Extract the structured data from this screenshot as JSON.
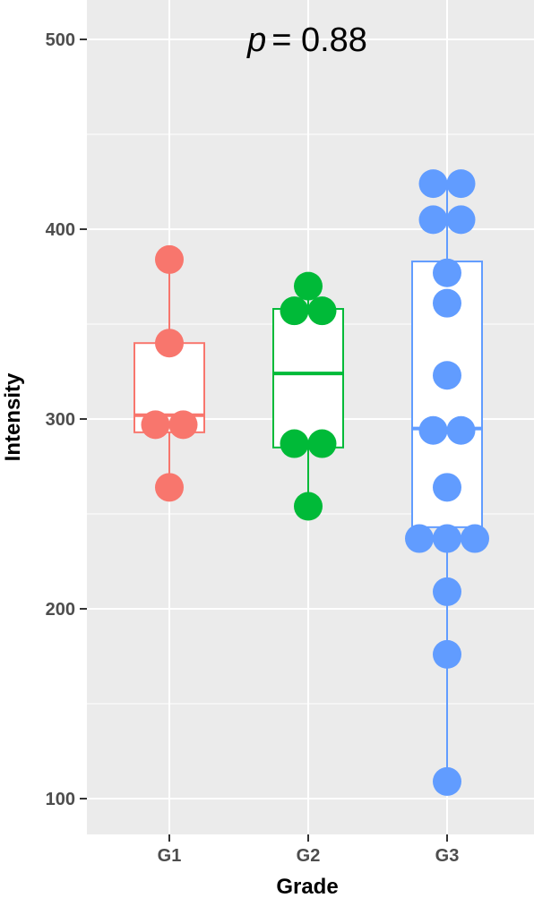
{
  "chart_data": {
    "type": "box-dot",
    "xlabel": "Grade",
    "ylabel": "Intensity",
    "ylim": [
      75,
      525
    ],
    "y_ticks": [
      100,
      200,
      300,
      400,
      500
    ],
    "grid": true,
    "annotation": {
      "p_symbol": "p",
      "text": "= 0.88"
    },
    "categories": [
      "G1",
      "G2",
      "G3"
    ],
    "groups": [
      {
        "name": "G1",
        "color": "#F8766D",
        "box": {
          "min": 264,
          "q1": 293,
          "median": 302,
          "q3": 340,
          "max": 384
        },
        "points": [
          {
            "offset": 0,
            "y": 384
          },
          {
            "offset": 0,
            "y": 340
          },
          {
            "offset": -0.5,
            "y": 297
          },
          {
            "offset": 0.5,
            "y": 297
          },
          {
            "offset": 0,
            "y": 264
          }
        ]
      },
      {
        "name": "G2",
        "color": "#00BA38",
        "box": {
          "min": 254,
          "q1": 285,
          "median": 324,
          "q3": 358,
          "max": 370
        },
        "points": [
          {
            "offset": 0,
            "y": 370
          },
          {
            "offset": -0.5,
            "y": 357
          },
          {
            "offset": 0.5,
            "y": 357
          },
          {
            "offset": -0.5,
            "y": 287
          },
          {
            "offset": 0.5,
            "y": 287
          },
          {
            "offset": 0,
            "y": 254
          }
        ]
      },
      {
        "name": "G3",
        "color": "#619CFF",
        "box": {
          "min": 109,
          "q1": 243,
          "median": 295,
          "q3": 383,
          "max": 424
        },
        "points": [
          {
            "offset": -0.5,
            "y": 424
          },
          {
            "offset": 0.5,
            "y": 424
          },
          {
            "offset": -0.5,
            "y": 405
          },
          {
            "offset": 0.5,
            "y": 405
          },
          {
            "offset": 0,
            "y": 377
          },
          {
            "offset": 0,
            "y": 361
          },
          {
            "offset": 0,
            "y": 323
          },
          {
            "offset": -0.5,
            "y": 294
          },
          {
            "offset": 0.5,
            "y": 294
          },
          {
            "offset": 0,
            "y": 264
          },
          {
            "offset": -1,
            "y": 237
          },
          {
            "offset": 0,
            "y": 237
          },
          {
            "offset": 1,
            "y": 237
          },
          {
            "offset": 0,
            "y": 209
          },
          {
            "offset": 0,
            "y": 176
          },
          {
            "offset": 0,
            "y": 109
          }
        ]
      }
    ]
  }
}
